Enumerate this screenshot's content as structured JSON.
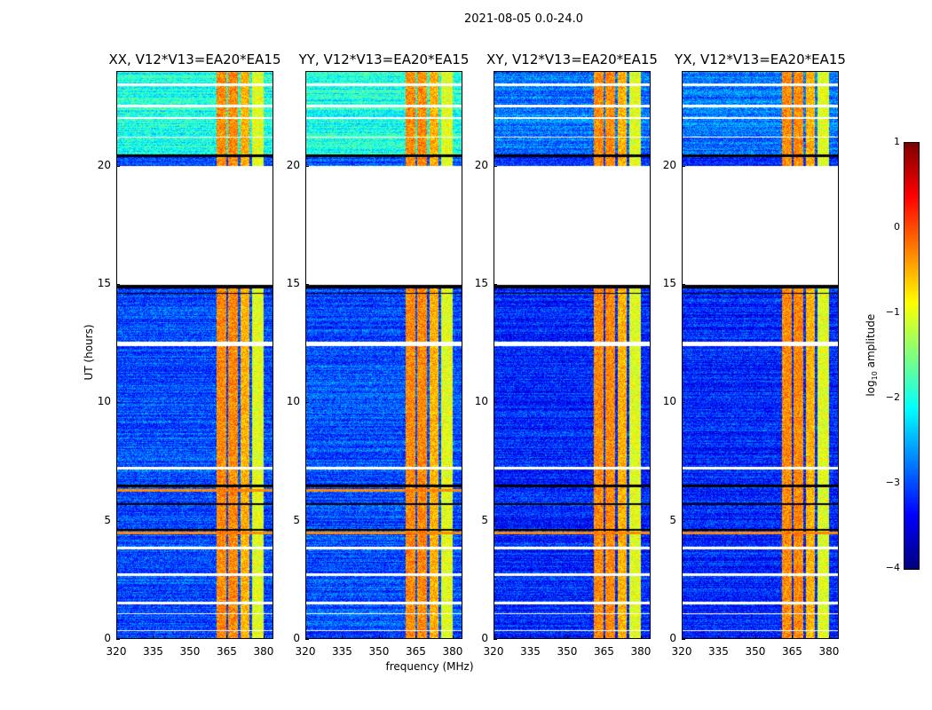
{
  "chart_data": {
    "type": "heatmap",
    "title": "2021-08-05 0.0-24.0",
    "xlabel": "frequency (MHz)",
    "ylabel": "UT (hours)",
    "xlim": [
      320,
      384
    ],
    "ylim": [
      0,
      24
    ],
    "xticks": [
      "320",
      "335",
      "350",
      "365",
      "380"
    ],
    "xtick_values": [
      320,
      335,
      350,
      365,
      380
    ],
    "yticks": [
      "0",
      "5",
      "10",
      "15",
      "20"
    ],
    "ytick_values": [
      0,
      5,
      10,
      15,
      20
    ],
    "colorbar": {
      "label_main": "log",
      "label_sub": "10",
      "label_rest": " amplitude",
      "range": [
        -4,
        1
      ],
      "ticks": [
        "1",
        "0",
        "−1",
        "−2",
        "−3",
        "−4"
      ],
      "tick_values": [
        1,
        0,
        -1,
        -2,
        -3,
        -4
      ],
      "colormap": "jet"
    },
    "panels": [
      {
        "title": "XX, V12*V13=EA20*EA15",
        "background_low": -3.0,
        "background_high": -2.0,
        "strong_rows_hours": [
          6.3,
          4.5
        ]
      },
      {
        "title": "YY, V12*V13=EA20*EA15",
        "background_low": -3.0,
        "background_high": -2.0,
        "strong_rows_hours": [
          4.5,
          6.3
        ]
      },
      {
        "title": "XY, V12*V13=EA20*EA15",
        "background_low": -3.2,
        "background_high": -2.8,
        "strong_rows_hours": [
          4.5
        ]
      },
      {
        "title": "YX, V12*V13=EA20*EA15",
        "background_low": -3.2,
        "background_high": -2.8,
        "strong_rows_hours": [
          4.5
        ]
      }
    ],
    "rfi_bands_mhz": [
      [
        360.5,
        364.5,
        -0.3
      ],
      [
        365.5,
        369.5,
        -0.3
      ],
      [
        370.5,
        374,
        -0.5
      ],
      [
        375,
        380,
        -1.0
      ]
    ],
    "flagged_hours": [
      [
        15.0,
        20.0
      ],
      [
        23.4,
        23.5
      ],
      [
        22.5,
        22.6
      ],
      [
        22.0,
        22.05
      ],
      [
        21.2,
        21.25
      ],
      [
        12.4,
        12.6
      ],
      [
        7.2,
        7.3
      ],
      [
        3.8,
        3.9
      ],
      [
        2.7,
        2.8
      ],
      [
        1.5,
        1.6
      ],
      [
        1.05,
        1.1
      ],
      [
        0.35,
        0.4
      ]
    ],
    "zero_rows_hours": [
      [
        20.4,
        20.5
      ],
      [
        14.85,
        15.0
      ],
      [
        14.6,
        14.65
      ],
      [
        6.45,
        6.55
      ],
      [
        5.7,
        5.75
      ],
      [
        4.6,
        4.65
      ]
    ]
  }
}
